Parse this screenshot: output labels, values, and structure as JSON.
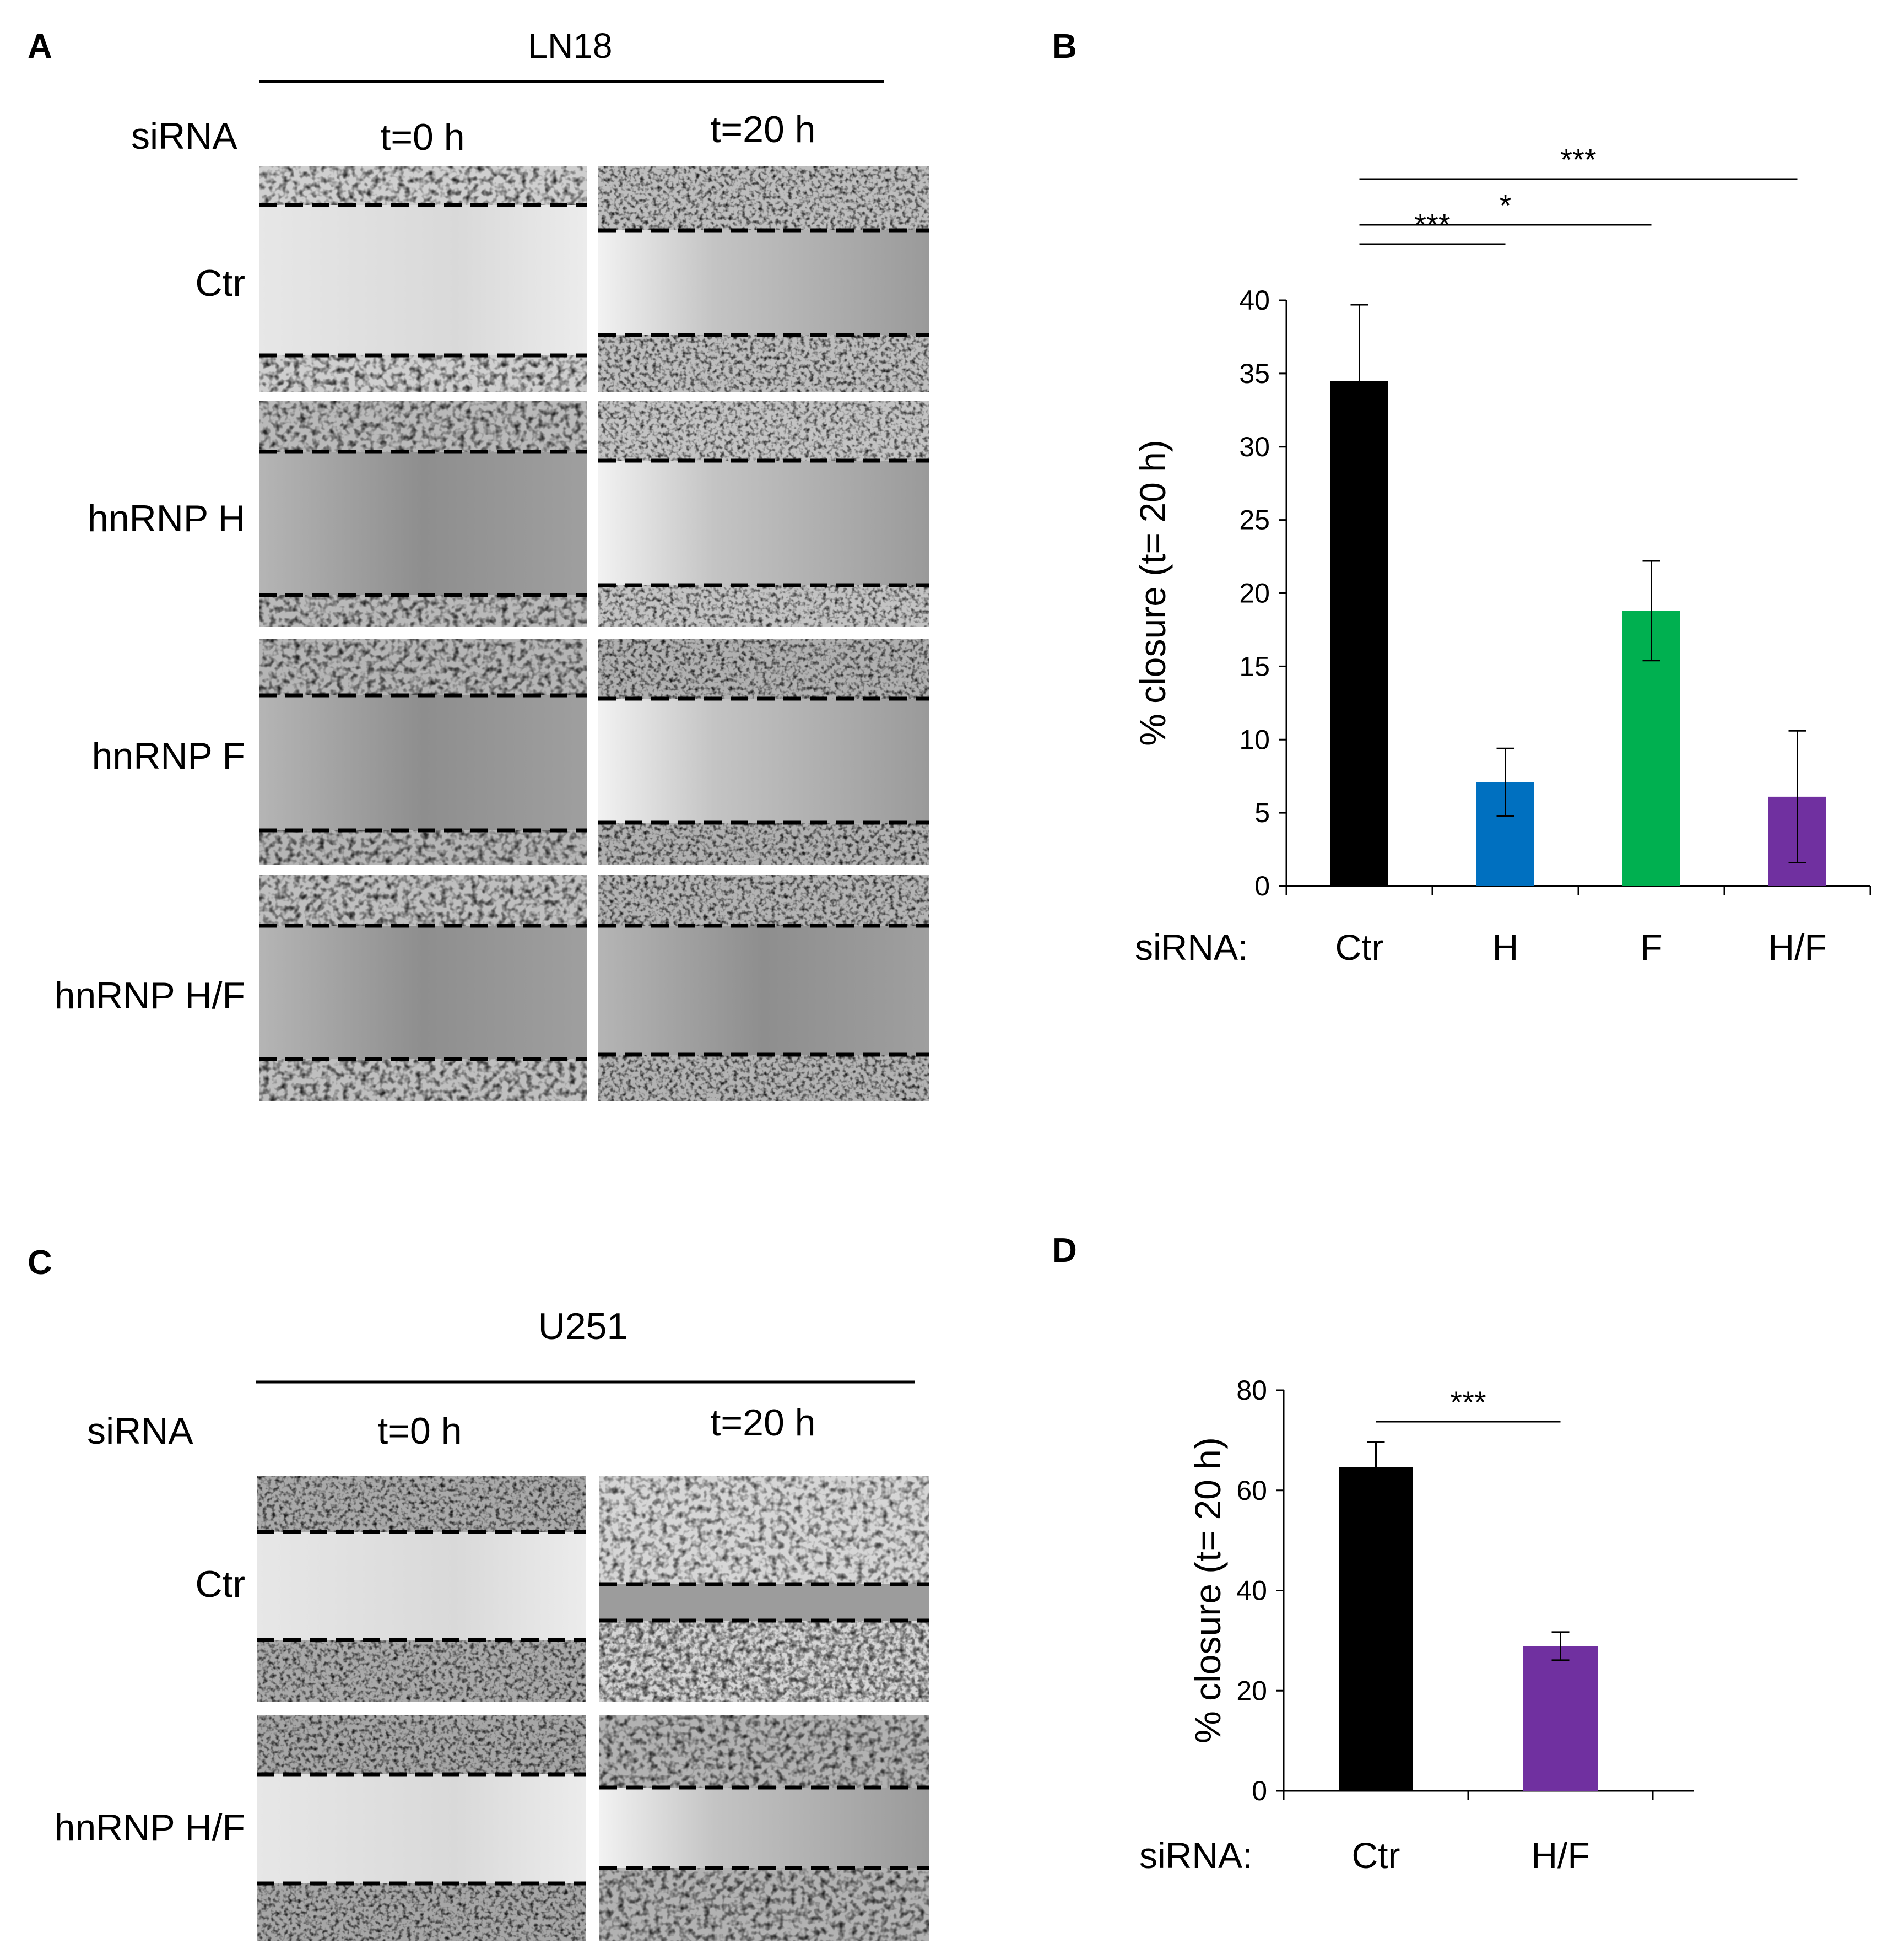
{
  "panels": {
    "A": {
      "letter": "A",
      "cell_line": "LN18",
      "sirna_label": "siRNA",
      "time_labels": [
        "t=0 h",
        "t=20 h"
      ],
      "rows": [
        "Ctr",
        "hnRNP H",
        "hnRNP F",
        "hnRNP H/F"
      ]
    },
    "B": {
      "letter": "B"
    },
    "C": {
      "letter": "C",
      "cell_line": "U251",
      "sirna_label": "siRNA",
      "time_labels": [
        "t=0 h",
        "t=20 h"
      ],
      "rows": [
        "Ctr",
        "hnRNP H/F"
      ]
    },
    "D": {
      "letter": "D"
    }
  },
  "chart_data": [
    {
      "panel": "B",
      "type": "bar",
      "xlabel_prefix": "siRNA:",
      "categories": [
        "Ctr",
        "H",
        "F",
        "H/F"
      ],
      "values": [
        34.5,
        7.1,
        18.8,
        6.1
      ],
      "errors": [
        5.2,
        2.3,
        3.4,
        4.5
      ],
      "colors": [
        "#000000",
        "#0070C0",
        "#00B050",
        "#7030A0"
      ],
      "ylabel": "% closure (t= 20 h)",
      "ylim": [
        0,
        40
      ],
      "yticks": [
        0,
        5,
        10,
        15,
        20,
        25,
        30,
        35,
        40
      ],
      "significance": [
        {
          "from": 0,
          "to": 1,
          "label": "***"
        },
        {
          "from": 0,
          "to": 2,
          "label": "*"
        },
        {
          "from": 0,
          "to": 3,
          "label": "***"
        }
      ]
    },
    {
      "panel": "D",
      "type": "bar",
      "xlabel_prefix": "siRNA:",
      "categories": [
        "Ctr",
        "H/F"
      ],
      "values": [
        64.7,
        28.9
      ],
      "errors": [
        5.0,
        2.8
      ],
      "colors": [
        "#000000",
        "#7030A0"
      ],
      "ylabel": "% closure (t= 20 h)",
      "ylim": [
        0,
        80
      ],
      "yticks": [
        0,
        20,
        40,
        60,
        80
      ],
      "significance": [
        {
          "from": 0,
          "to": 1,
          "label": "***"
        }
      ]
    }
  ]
}
